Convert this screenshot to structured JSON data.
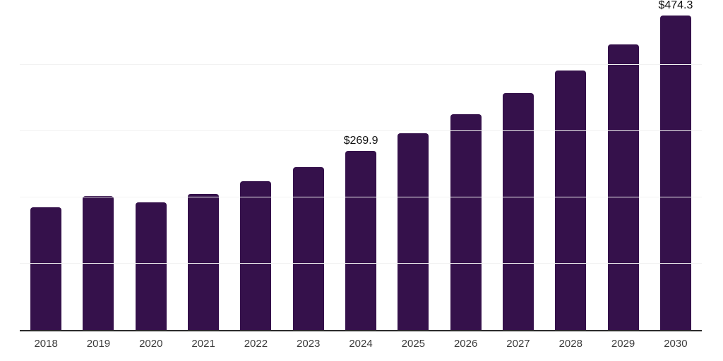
{
  "chart_data": {
    "type": "bar",
    "title": "",
    "xlabel": "",
    "ylabel": "",
    "categories": [
      "2018",
      "2019",
      "2020",
      "2021",
      "2022",
      "2023",
      "2024",
      "2025",
      "2026",
      "2027",
      "2028",
      "2029",
      "2030"
    ],
    "values": [
      184.6,
      202.2,
      192.3,
      205.6,
      224.4,
      245.9,
      269.9,
      296.5,
      325.5,
      357.0,
      392.0,
      431.0,
      474.3
    ],
    "data_labels": [
      {
        "category": "2024",
        "text": "$269.9"
      },
      {
        "category": "2030",
        "text": "$474.3"
      }
    ],
    "ylim": [
      0,
      500
    ],
    "gridline_step": 100,
    "grid": "horizontal-only",
    "y_axis_labels_shown": false,
    "legend_position": "none",
    "colors": {
      "bar": "#35114b",
      "axis_line": "#2b2b2b",
      "tick_label": "#3c3c3c",
      "data_label": "#111111",
      "gridline": "#f2f2f2",
      "background": "#ffffff"
    }
  }
}
